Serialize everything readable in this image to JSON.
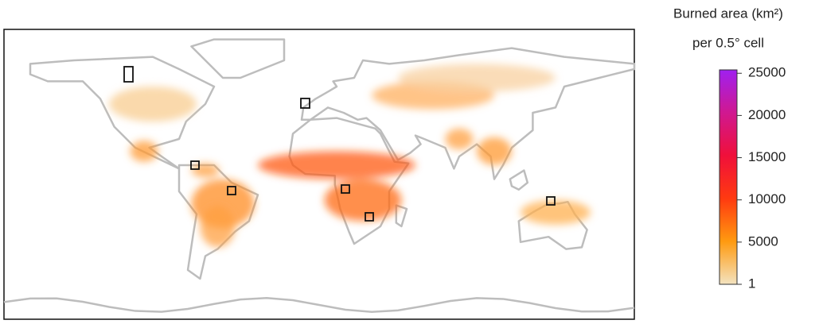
{
  "legend": {
    "title": "Burned area (km²)",
    "subtitle": "per 0.5° cell",
    "range": [
      1,
      25400
    ],
    "ticks": [
      1,
      5000,
      10000,
      15000,
      20000,
      25000
    ]
  }
}
